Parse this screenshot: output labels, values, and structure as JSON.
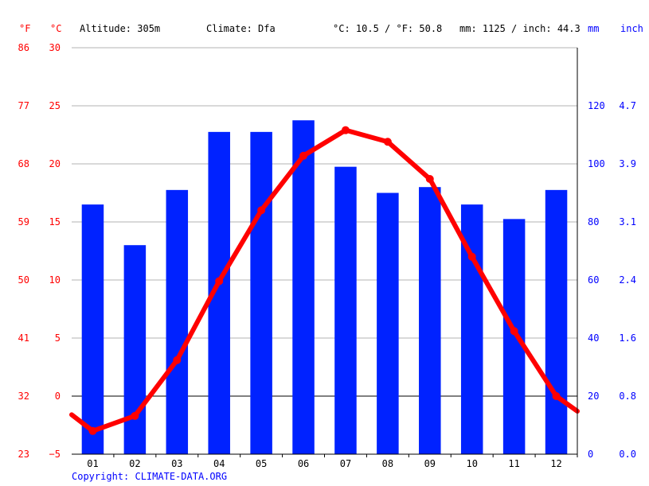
{
  "header": {
    "unit_f": "°F",
    "unit_c": "°C",
    "altitude": "Altitude: 305m",
    "climate": "Climate: Dfa",
    "temp_summary": "°C: 10.5 / °F: 50.8",
    "precip_summary": "mm: 1125 / inch: 44.3",
    "unit_mm": "mm",
    "unit_inch": "inch"
  },
  "footer": {
    "copyright": "Copyright: CLIMATE-DATA.ORG"
  },
  "colors": {
    "temperature": "#ff0000",
    "precipitation": "#0022ff",
    "grid": "#b3b3b3",
    "left_axis_text": "#ff0000",
    "right_axis_text": "#0000ff"
  },
  "chart_data": {
    "type": "bar+line",
    "categories": [
      "01",
      "02",
      "03",
      "04",
      "05",
      "06",
      "07",
      "08",
      "09",
      "10",
      "11",
      "12"
    ],
    "series": [
      {
        "type": "bar",
        "axis": "right",
        "unit": "mm",
        "values": [
          86,
          72,
          91,
          111,
          111,
          115,
          99,
          90,
          92,
          86,
          81,
          91
        ]
      },
      {
        "type": "line",
        "axis": "left",
        "unit": "°C",
        "values": [
          -3.0,
          -1.7,
          3.1,
          9.9,
          16.0,
          20.7,
          22.9,
          21.9,
          18.7,
          12.0,
          5.6,
          0.0
        ]
      }
    ],
    "line_edge_values": {
      "start": -1.6,
      "end": -1.3
    },
    "left_axis_c": {
      "ylim": [
        -5,
        30
      ],
      "ticks": [
        "30",
        "25",
        "20",
        "15",
        "10",
        "5",
        "0",
        "−5"
      ]
    },
    "left_axis_f": {
      "ticks": [
        "86",
        "77",
        "68",
        "59",
        "50",
        "41",
        "32",
        "23"
      ]
    },
    "right_axis_mm": {
      "ylim": [
        0,
        140
      ],
      "ticks": [
        "120",
        "100",
        "80",
        "60",
        "40",
        "20",
        "0"
      ]
    },
    "right_axis_inch": {
      "ticks": [
        "4.7",
        "3.9",
        "3.1",
        "2.4",
        "1.6",
        "0.8",
        "0.0"
      ]
    },
    "grid": true
  }
}
